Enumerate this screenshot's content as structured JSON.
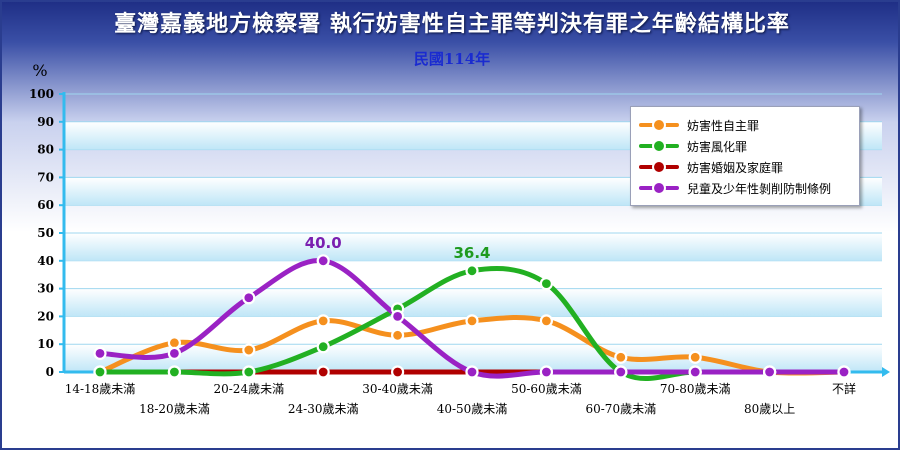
{
  "title": "臺灣嘉義地方檢察署 執行妨害性自主罪等判決有罪之年齡結構比率",
  "subtitle": "民國114年",
  "colors": {
    "background_top": "#1f2f86",
    "plot_band": "#bfe6f7",
    "axis": "#33bbee",
    "title_text": "#ffffff",
    "subtitle_text": "#1a2bd0"
  },
  "chart_data": {
    "type": "line",
    "ylabel": "%",
    "xlabel": "",
    "ylim": [
      0,
      100
    ],
    "yticks": [
      0,
      10,
      20,
      30,
      40,
      50,
      60,
      70,
      80,
      90,
      100
    ],
    "grid": true,
    "legend_position": "top-right",
    "categories": [
      "14-18歲未滿",
      "18-20歲未滿",
      "20-24歲未滿",
      "24-30歲未滿",
      "30-40歲未滿",
      "40-50歲未滿",
      "50-60歲未滿",
      "60-70歲未滿",
      "70-80歲未滿",
      "80歲以上",
      "不詳"
    ],
    "series": [
      {
        "name": "妨害性自主罪",
        "color": "#f5901e",
        "values": [
          0.0,
          10.5,
          7.9,
          18.4,
          13.2,
          18.4,
          18.4,
          5.3,
          5.3,
          0.0,
          0.0
        ]
      },
      {
        "name": "妨害風化罪",
        "color": "#22b022",
        "values": [
          0.0,
          0.0,
          0.0,
          9.1,
          22.7,
          36.4,
          31.8,
          0.0,
          0.0,
          0.0,
          0.0
        ]
      },
      {
        "name": "妨害婚姻及家庭罪",
        "color": "#b00000",
        "values": [
          0.0,
          0.0,
          0.0,
          0.0,
          0.0,
          0.0,
          0.0,
          0.0,
          0.0,
          0.0,
          0.0
        ]
      },
      {
        "name": "兒童及少年性剝削防制條例",
        "color": "#9a22c4",
        "values": [
          6.7,
          6.7,
          26.7,
          40.0,
          20.0,
          0.0,
          0.0,
          0.0,
          0.0,
          0.0,
          0.0
        ]
      }
    ],
    "annotations": [
      {
        "text": "40.0",
        "series": 3,
        "index": 3,
        "color": "#7a1fb0"
      },
      {
        "text": "36.4",
        "series": 1,
        "index": 5,
        "color": "#1e9a1e"
      }
    ]
  }
}
